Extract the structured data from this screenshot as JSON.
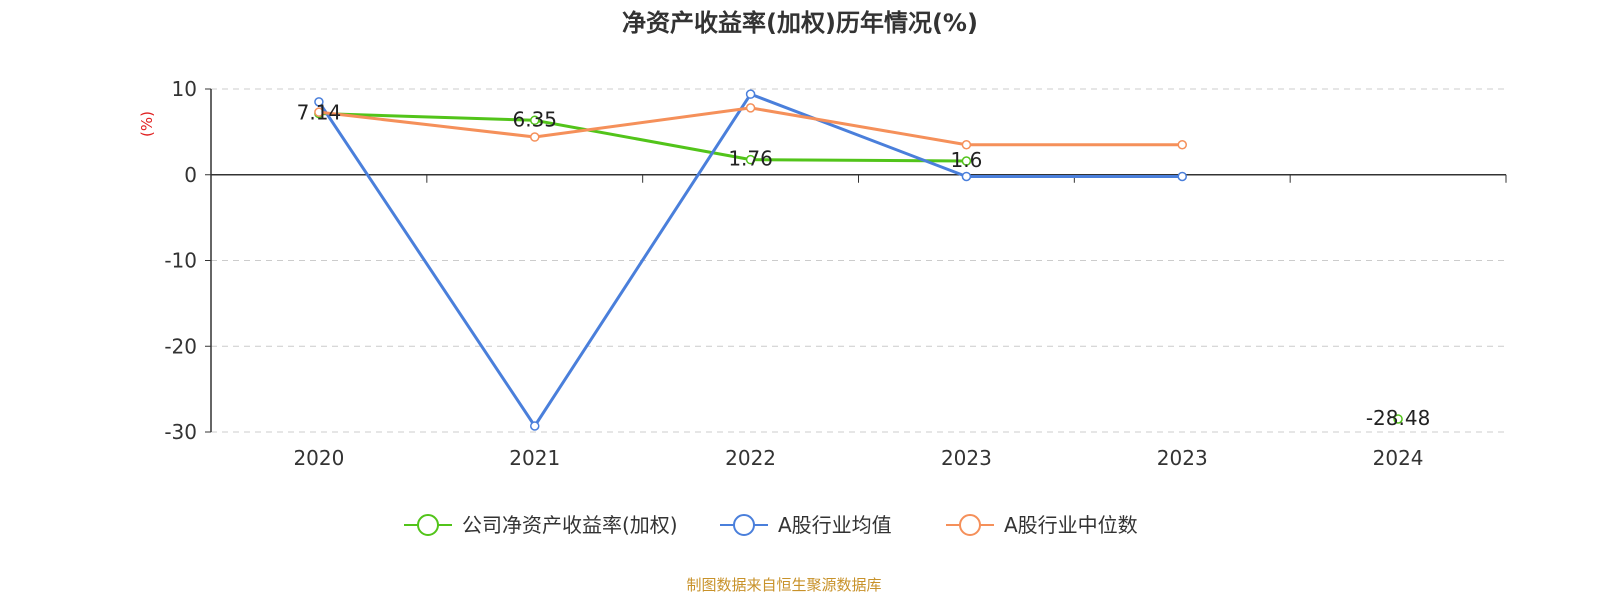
{
  "chart_data": {
    "type": "line",
    "title": "净资产收益率(加权)历年情况(%)",
    "ylabel": "(%)",
    "ylim": [
      -30,
      10
    ],
    "yticks": [
      10,
      0,
      -10,
      -20,
      -30
    ],
    "categories": [
      "2020",
      "2021",
      "2022",
      "2023",
      "2023",
      "2024"
    ],
    "grid": true,
    "legend_position": "bottom",
    "series": [
      {
        "name": "公司净资产收益率(加权)",
        "color": "#52c41a",
        "values": [
          7.14,
          6.35,
          1.76,
          1.6,
          null,
          -28.48
        ],
        "labels": [
          "7.14",
          "6.35",
          "1.76",
          "1.6",
          null,
          "-28.48"
        ]
      },
      {
        "name": "A股行业均值",
        "color": "#4a7fdb",
        "values": [
          8.5,
          -29.3,
          9.4,
          -0.2,
          -0.2,
          null
        ]
      },
      {
        "name": "A股行业中位数",
        "color": "#f5905a",
        "values": [
          7.3,
          4.4,
          7.8,
          3.5,
          3.5,
          null
        ]
      }
    ]
  },
  "footer": {
    "source": "制图数据来自恒生聚源数据库",
    "color": "#c8922a"
  },
  "colors": {
    "ylabel": "#e02020",
    "axis": "#333333",
    "grid": "#cccccc"
  }
}
